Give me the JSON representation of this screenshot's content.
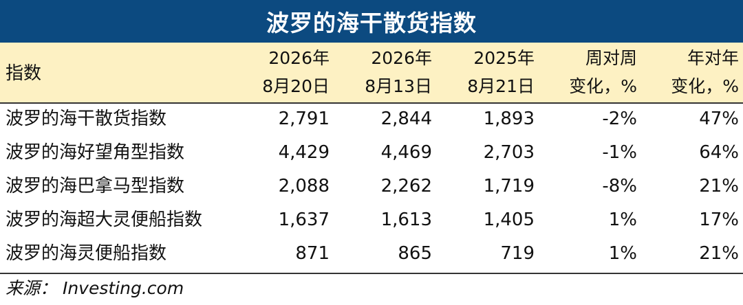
{
  "title": "波罗的海干散货指数",
  "header": {
    "index_label": "指数",
    "columns": [
      {
        "line1": "2026年",
        "line2": "8月20日"
      },
      {
        "line1": "2026年",
        "line2": "8月13日"
      },
      {
        "line1": "2025年",
        "line2": "8月21日"
      },
      {
        "line1": "周对周",
        "line2": "变化，%"
      },
      {
        "line1": "年对年",
        "line2": "变化，%"
      }
    ]
  },
  "rows": [
    {
      "name": "波罗的海干散货指数",
      "values": [
        "2,791",
        "2,844",
        "1,893",
        "-2%",
        "47%"
      ]
    },
    {
      "name": "波罗的海好望角型指数",
      "values": [
        "4,429",
        "4,469",
        "2,703",
        "-1%",
        "64%"
      ]
    },
    {
      "name": "波罗的海巴拿马型指数",
      "values": [
        "2,088",
        "2,262",
        "1,719",
        "-8%",
        "21%"
      ]
    },
    {
      "name": "波罗的海超大灵便船指数",
      "values": [
        "1,637",
        "1,613",
        "1,405",
        "1%",
        "17%"
      ]
    },
    {
      "name": "波罗的海灵便船指数",
      "values": [
        "871",
        "865",
        "719",
        "1%",
        "21%"
      ]
    }
  ],
  "source": "来源： Investing.com",
  "colors": {
    "title_bg": "#0c4a80",
    "header_bg": "#fdf1c3"
  }
}
